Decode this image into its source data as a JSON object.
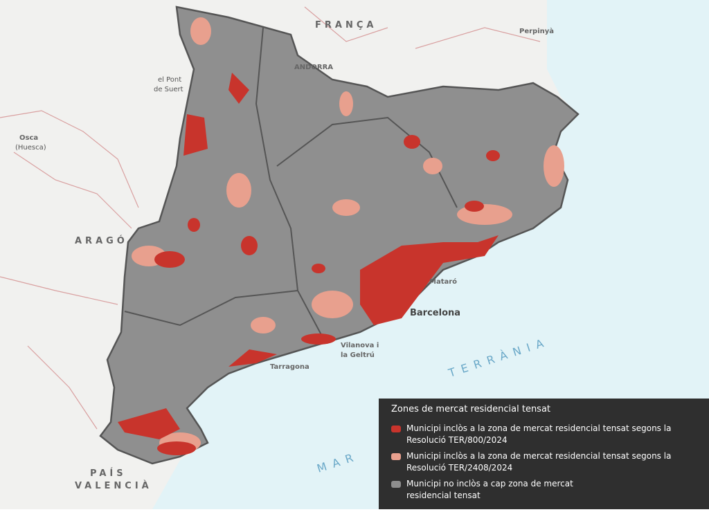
{
  "map": {
    "labels": {
      "france": "FRANÇA",
      "perpignan": "Perpinyà",
      "andorra": "ANDORRA",
      "pont_suert": [
        "el Pont",
        "de Suert"
      ],
      "huesca": [
        "Osca",
        "(Huesca)"
      ],
      "arago": "ARAGÓ",
      "mataro": "Mataró",
      "barcelona": "Barcelona",
      "vilanova": [
        "Vilanova i",
        "la Geltrú"
      ],
      "tarragona": "Tarragona",
      "sea_left": "MAR",
      "sea_right": "TERRÀNIA",
      "valencia": [
        "PAÍS",
        "VALENCIÀ"
      ]
    }
  },
  "legend": {
    "title": "Zones de mercat residencial tensat",
    "items": [
      {
        "label": "Municipi inclòs a la zona de mercat residencial tensat segons la Resolució TER/800/2024",
        "color": "#c8342c"
      },
      {
        "label": "Municipi inclòs a la zona de mercat residencial tensat segons la Resolució TER/2408/2024",
        "color": "#e8a08e"
      },
      {
        "label": "Municipi no inclòs a cap zona de mercat residencial tensat",
        "color": "#8e8e8e"
      }
    ]
  }
}
